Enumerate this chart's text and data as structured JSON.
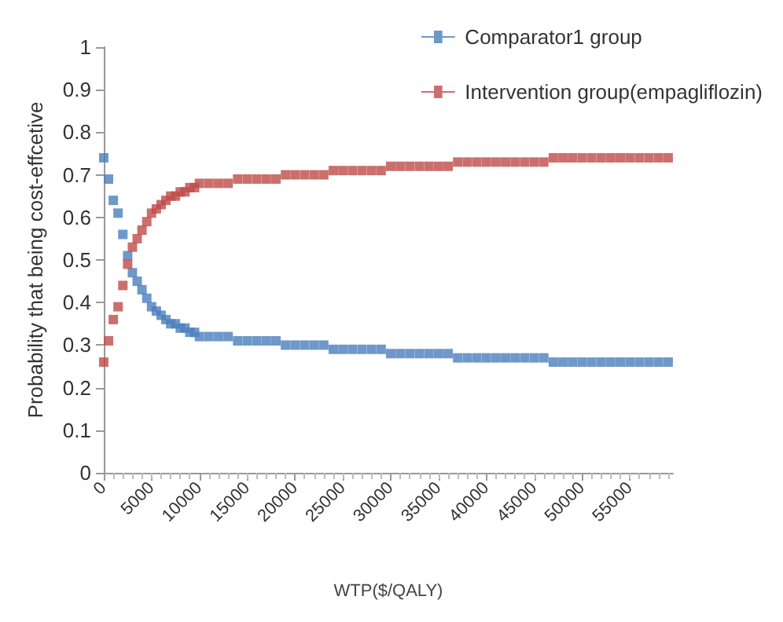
{
  "chart_data": {
    "type": "scatter",
    "xlabel": "WTP($/QALY)",
    "ylabel": "Probability that being cost-effcetive",
    "x": [
      0,
      500,
      1000,
      1500,
      2000,
      2500,
      3000,
      3500,
      4000,
      4500,
      5000,
      5500,
      6000,
      6500,
      7000,
      7500,
      8000,
      8500,
      9000,
      9500,
      10000,
      11000,
      12000,
      13000,
      14000,
      15000,
      16000,
      17000,
      18000,
      19000,
      20000,
      21000,
      22000,
      23000,
      24000,
      25000,
      26000,
      27000,
      28000,
      29000,
      30000,
      31000,
      32000,
      33000,
      34000,
      35000,
      36000,
      37000,
      38000,
      39000,
      40000,
      41000,
      42000,
      43000,
      44000,
      45000,
      46000,
      47000,
      48000,
      49000,
      50000,
      51000,
      52000,
      53000,
      54000,
      55000,
      56000,
      57000,
      58000,
      59000
    ],
    "series": [
      {
        "name": "Comparator1 group",
        "color": "#4a7ebb",
        "values": [
          0.74,
          0.69,
          0.64,
          0.61,
          0.56,
          0.51,
          0.47,
          0.45,
          0.43,
          0.41,
          0.39,
          0.38,
          0.37,
          0.36,
          0.35,
          0.35,
          0.34,
          0.34,
          0.33,
          0.33,
          0.32,
          0.32,
          0.32,
          0.32,
          0.31,
          0.31,
          0.31,
          0.31,
          0.31,
          0.3,
          0.3,
          0.3,
          0.3,
          0.3,
          0.29,
          0.29,
          0.29,
          0.29,
          0.29,
          0.29,
          0.28,
          0.28,
          0.28,
          0.28,
          0.28,
          0.28,
          0.28,
          0.27,
          0.27,
          0.27,
          0.27,
          0.27,
          0.27,
          0.27,
          0.27,
          0.27,
          0.27,
          0.26,
          0.26,
          0.26,
          0.26,
          0.26,
          0.26,
          0.26,
          0.26,
          0.26,
          0.26,
          0.26,
          0.26,
          0.26
        ]
      },
      {
        "name": "Intervention group(empagliflozin)",
        "color": "#be4b48",
        "values": [
          0.26,
          0.31,
          0.36,
          0.39,
          0.44,
          0.49,
          0.53,
          0.55,
          0.57,
          0.59,
          0.61,
          0.62,
          0.63,
          0.64,
          0.65,
          0.65,
          0.66,
          0.66,
          0.67,
          0.67,
          0.68,
          0.68,
          0.68,
          0.68,
          0.69,
          0.69,
          0.69,
          0.69,
          0.69,
          0.7,
          0.7,
          0.7,
          0.7,
          0.7,
          0.71,
          0.71,
          0.71,
          0.71,
          0.71,
          0.71,
          0.72,
          0.72,
          0.72,
          0.72,
          0.72,
          0.72,
          0.72,
          0.73,
          0.73,
          0.73,
          0.73,
          0.73,
          0.73,
          0.73,
          0.73,
          0.73,
          0.73,
          0.74,
          0.74,
          0.74,
          0.74,
          0.74,
          0.74,
          0.74,
          0.74,
          0.74,
          0.74,
          0.74,
          0.74,
          0.74
        ]
      }
    ],
    "xlim": [
      0,
      59500
    ],
    "xticks": [
      0,
      5000,
      10000,
      15000,
      20000,
      25000,
      30000,
      35000,
      40000,
      45000,
      50000,
      55000
    ],
    "ylim": [
      0,
      1
    ],
    "yticks": [
      0,
      0.1,
      0.2,
      0.3,
      0.4,
      0.5,
      0.6,
      0.7,
      0.8,
      0.9,
      1
    ],
    "grid": false,
    "legend": "top right",
    "marker": "square"
  }
}
